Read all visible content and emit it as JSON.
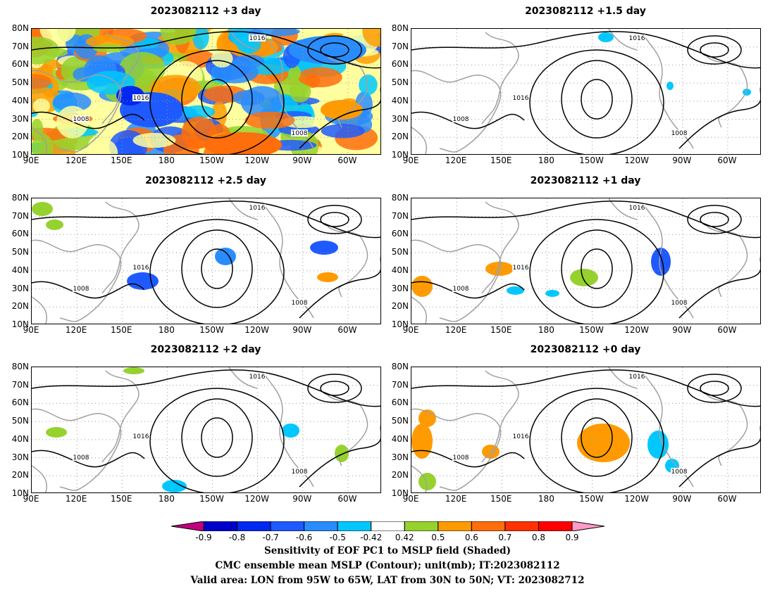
{
  "panels": [
    {
      "title": "2023082112 +3 day"
    },
    {
      "title": "2023082112 +1.5 day"
    },
    {
      "title": "2023082112 +2.5 day"
    },
    {
      "title": "2023082112 +1 day"
    },
    {
      "title": "2023082112 +2 day"
    },
    {
      "title": "2023082112 +0 day"
    }
  ],
  "axes": {
    "lat_labels": [
      "80N",
      "70N",
      "60N",
      "50N",
      "40N",
      "30N",
      "20N",
      "10N"
    ],
    "lon_labels": [
      "90E",
      "120E",
      "150E",
      "180",
      "150W",
      "120W",
      "90W",
      "60W"
    ]
  },
  "contour_labels": [
    "1008",
    "1016"
  ],
  "colorbar": {
    "labels": [
      "-0.9",
      "-0.8",
      "-0.7",
      "-0.6",
      "-0.5",
      "-0.42",
      "0.42",
      "0.5",
      "0.6",
      "0.7",
      "0.8",
      "0.9"
    ],
    "colors": [
      "#c0007f",
      "#0000c8",
      "#0028f0",
      "#1e5aff",
      "#288cff",
      "#00c8ff",
      "#ffffff",
      "#96d22d",
      "#ff9b00",
      "#ff6e0a",
      "#ff3200",
      "#ff0000",
      "#ff9bc8"
    ]
  },
  "captions": [
    "Sensitivity of EOF PC1 to MSLP field (Shaded)",
    "CMC ensemble mean MSLP (Contour); unit(mb); IT:2023082112",
    "Valid area: LON from 95W to 65W, LAT from 30N to 50N; VT: 2023082712"
  ]
}
